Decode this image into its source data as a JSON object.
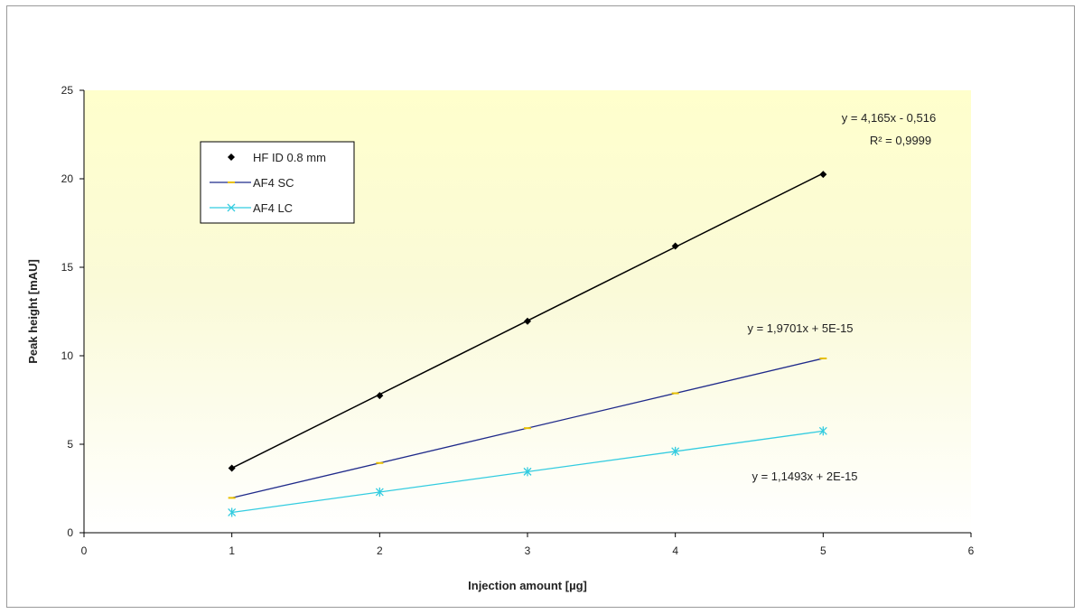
{
  "chart_data": {
    "type": "line",
    "title": "",
    "xlabel": "Injection amount [µg]",
    "ylabel": "Peak height [mAU]",
    "xlim": [
      0,
      6
    ],
    "ylim": [
      0,
      25
    ],
    "xticks": [
      "0",
      "1",
      "2",
      "3",
      "4",
      "5",
      "6"
    ],
    "yticks": [
      "0",
      "5",
      "10",
      "15",
      "20",
      "25"
    ],
    "grid": false,
    "legend_position": "upper-left",
    "plot_background": "yellow-gradient",
    "series": [
      {
        "name": "HF ID 0.8 mm",
        "color": "#000000",
        "marker": "diamond",
        "x": [
          1,
          2,
          3,
          4,
          5
        ],
        "y": [
          3.65,
          7.75,
          11.95,
          16.2,
          20.25
        ],
        "trendline": {
          "slope": 4.165,
          "intercept": -0.516
        }
      },
      {
        "name": "AF4 SC",
        "color": "#1f2a8a",
        "marker": "dash",
        "marker_color": "#e8c000",
        "x": [
          1,
          2,
          3,
          4,
          5
        ],
        "y": [
          1.97,
          3.94,
          5.91,
          7.88,
          9.85
        ],
        "trendline": {
          "slope": 1.9701,
          "intercept": 0
        }
      },
      {
        "name": "AF4 LC",
        "color": "#33cce0",
        "marker": "star",
        "x": [
          1,
          2,
          3,
          4,
          5
        ],
        "y": [
          1.15,
          2.3,
          3.45,
          4.6,
          5.75
        ],
        "trendline": {
          "slope": 1.1493,
          "intercept": 0
        }
      }
    ],
    "annotations": {
      "hf_equation": "y = 4,165x - 0,516",
      "hf_r2": "R² = 0,9999",
      "sc_equation": "y = 1,9701x + 5E-15",
      "lc_equation": "y = 1,1493x + 2E-15"
    }
  }
}
